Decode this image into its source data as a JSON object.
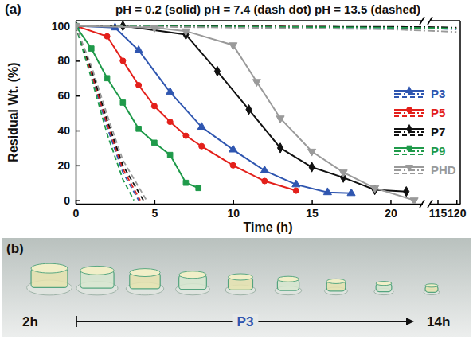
{
  "chart_data": {
    "type": "line",
    "panel_label": "(a)",
    "title": "pH = 0.2 (solid) pH = 7.4 (dash dot) pH = 13.5 (dashed)",
    "x_label": "Time (h)",
    "y_label": "Residual Wt. (%)",
    "xlim": [
      0,
      22
    ],
    "xticks": [
      0,
      5,
      10,
      15,
      20
    ],
    "xlim_break": [
      113,
      121
    ],
    "xticks_break": [
      115,
      120
    ],
    "ylim": [
      -2,
      103
    ],
    "yticks": [
      0,
      20,
      40,
      60,
      80,
      100
    ],
    "legend": "right",
    "series": [
      {
        "name": "P3",
        "color": "#2f56b0",
        "line_style": "solid",
        "marker": "triangle-up",
        "x": [
          0,
          2.5,
          4,
          6,
          8,
          10,
          12,
          14,
          16,
          17.5
        ],
        "values": [
          100,
          99,
          86,
          62,
          42,
          29,
          17,
          9,
          4.5,
          4
        ]
      },
      {
        "name": "P3",
        "color": "#2f56b0",
        "line_style": "dashdot",
        "x": [
          0,
          5,
          10,
          15,
          20,
          115,
          120
        ],
        "values": [
          100,
          99.8,
          99.5,
          99.2,
          99,
          98.5,
          98
        ]
      },
      {
        "name": "P3",
        "color": "#2f56b0",
        "line_style": "dashed",
        "x": [
          0,
          1,
          2,
          3,
          4
        ],
        "values": [
          100,
          72,
          42,
          16,
          0
        ]
      },
      {
        "name": "P5",
        "color": "#e3201b",
        "line_style": "solid",
        "marker": "circle",
        "x": [
          0,
          2,
          3,
          4,
          5,
          6,
          7,
          8,
          10,
          12,
          14
        ],
        "values": [
          100,
          94,
          80,
          66,
          54,
          45,
          37,
          31,
          20,
          11,
          5.5
        ]
      },
      {
        "name": "P5",
        "color": "#e3201b",
        "line_style": "dashdot",
        "x": [
          0,
          5,
          10,
          15,
          20,
          115,
          120
        ],
        "values": [
          100,
          99.9,
          99.7,
          99.5,
          99.3,
          99,
          98.8
        ]
      },
      {
        "name": "P5",
        "color": "#e3201b",
        "line_style": "dashed",
        "x": [
          0,
          1,
          2,
          3,
          4.1
        ],
        "values": [
          100,
          73,
          44,
          18,
          0
        ]
      },
      {
        "name": "P7",
        "color": "#111111",
        "line_style": "solid",
        "marker": "diamond",
        "x": [
          0,
          3,
          7,
          9,
          11,
          13,
          15,
          17,
          19,
          21
        ],
        "values": [
          100,
          100,
          95,
          74,
          52,
          30,
          19,
          13,
          6,
          5
        ]
      },
      {
        "name": "P7",
        "color": "#111111",
        "line_style": "dashdot",
        "x": [
          0,
          5,
          10,
          15,
          20,
          115,
          120
        ],
        "values": [
          100,
          99.9,
          99.8,
          99.6,
          99.5,
          99.3,
          99
        ]
      },
      {
        "name": "P7",
        "color": "#111111",
        "line_style": "dashed",
        "x": [
          0,
          1,
          2,
          3,
          4.3
        ],
        "values": [
          100,
          75,
          46,
          20,
          0
        ]
      },
      {
        "name": "P9",
        "color": "#1f9a4a",
        "line_style": "solid",
        "marker": "square",
        "x": [
          0,
          1,
          2,
          3,
          4,
          5,
          6,
          7,
          7.8
        ],
        "values": [
          100,
          87,
          70,
          56,
          41,
          33,
          26,
          10,
          7
        ]
      },
      {
        "name": "P9",
        "color": "#1f9a4a",
        "line_style": "dashdot",
        "x": [
          0,
          5,
          10,
          15,
          20,
          115,
          120
        ],
        "values": [
          100,
          99.8,
          99.6,
          99.3,
          99,
          98.8,
          98.5
        ]
      },
      {
        "name": "P9",
        "color": "#1f9a4a",
        "line_style": "dashed",
        "x": [
          0,
          1,
          2,
          3,
          3.7
        ],
        "values": [
          100,
          70,
          38,
          12,
          0
        ]
      },
      {
        "name": "PHD",
        "color": "#9a9a9a",
        "line_style": "solid",
        "marker": "triangle-down",
        "x": [
          0,
          5,
          7,
          10,
          11.5,
          13,
          15,
          17,
          19,
          21.5
        ],
        "values": [
          100,
          99,
          97,
          89,
          68,
          47,
          28,
          16,
          7,
          0
        ]
      },
      {
        "name": "PHD",
        "color": "#9a9a9a",
        "line_style": "dashdot",
        "x": [
          0,
          5,
          10,
          15,
          20,
          115,
          120
        ],
        "values": [
          100,
          99.5,
          99,
          98.5,
          98,
          97,
          96.5
        ]
      },
      {
        "name": "PHD",
        "color": "#9a9a9a",
        "line_style": "dashed",
        "x": [
          0,
          1,
          2,
          3,
          4.5
        ],
        "values": [
          100,
          77,
          49,
          23,
          0
        ]
      }
    ]
  },
  "panel_b": {
    "panel_label": "(b)",
    "start_label": "2h",
    "series_label": "P3",
    "end_label": "14h",
    "color": "#2f56b0"
  }
}
